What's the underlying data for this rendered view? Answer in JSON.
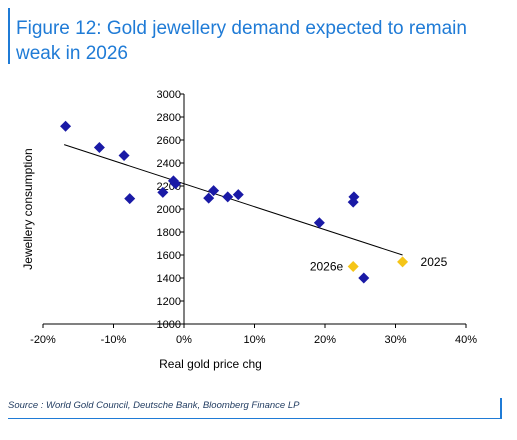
{
  "title": "Figure 12: Gold jewellery demand expected to remain weak in 2026",
  "source": "Source : World Gold Council, Deutsche Bank, Bloomberg Finance LP",
  "colors": {
    "accent": "#1f7bd6",
    "points": "#1a1aa6",
    "highlight": "#f5c518",
    "text": "#000000"
  },
  "chart_data": {
    "type": "scatter",
    "xlabel": "Real gold price chg",
    "ylabel": "Jewellery consumption",
    "xlim": [
      -0.2,
      0.4
    ],
    "ylim": [
      1000,
      3000
    ],
    "xticks": [
      "-20%",
      "-10%",
      "0%",
      "10%",
      "20%",
      "30%",
      "40%"
    ],
    "yticks": [
      "1000",
      "1200",
      "1400",
      "1600",
      "1800",
      "2000",
      "2200",
      "2400",
      "2600",
      "2800",
      "3000"
    ],
    "grid": false,
    "series": [
      {
        "points": [
          [
            -0.168,
            2720
          ],
          [
            -0.12,
            2535
          ],
          [
            -0.085,
            2465
          ],
          [
            -0.077,
            2090
          ],
          [
            -0.03,
            2145
          ],
          [
            -0.015,
            2245
          ],
          [
            -0.012,
            2220
          ],
          [
            0.035,
            2095
          ],
          [
            0.042,
            2160
          ],
          [
            0.062,
            2105
          ],
          [
            0.077,
            2125
          ],
          [
            0.192,
            1880
          ],
          [
            0.24,
            2060
          ],
          [
            0.241,
            2105
          ],
          [
            0.255,
            1400
          ]
        ]
      },
      {
        "points": [
          [
            0.24,
            1500
          ],
          [
            0.31,
            1540
          ]
        ],
        "labels": [
          "2026e",
          "2025"
        ]
      }
    ],
    "trendline": [
      [
        -0.17,
        2560
      ],
      [
        0.31,
        1600
      ]
    ]
  }
}
